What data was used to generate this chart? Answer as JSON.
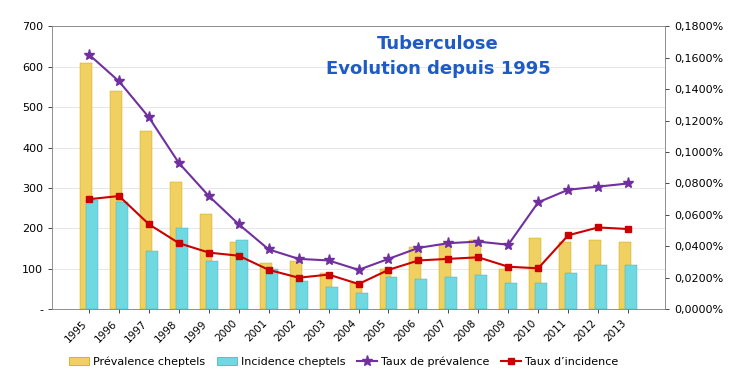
{
  "years": [
    1995,
    1996,
    1997,
    1998,
    1999,
    2000,
    2001,
    2002,
    2003,
    2004,
    2005,
    2006,
    2007,
    2008,
    2009,
    2010,
    2011,
    2012,
    2013
  ],
  "prevalence_cheptels": [
    610,
    540,
    440,
    315,
    235,
    165,
    115,
    120,
    90,
    65,
    100,
    155,
    160,
    170,
    100,
    175,
    165,
    170,
    165
  ],
  "incidence_cheptels": [
    270,
    265,
    145,
    200,
    120,
    170,
    100,
    70,
    55,
    40,
    80,
    75,
    80,
    85,
    65,
    65,
    90,
    110,
    110
  ],
  "taux_prevalence": [
    0.00162,
    0.00145,
    0.00122,
    0.00093,
    0.00072,
    0.00054,
    0.00038,
    0.00032,
    0.00031,
    0.00025,
    0.00032,
    0.00039,
    0.00042,
    0.00043,
    0.00041,
    0.00068,
    0.00076,
    0.00078,
    0.0008
  ],
  "taux_incidence": [
    0.0007,
    0.00072,
    0.00054,
    0.00042,
    0.00036,
    0.00034,
    0.00025,
    0.0002,
    0.00022,
    0.00016,
    0.00025,
    0.00031,
    0.00032,
    0.00033,
    0.00027,
    0.00026,
    0.00047,
    0.00052,
    0.00051
  ],
  "title_line1": "Tuberculose",
  "title_line2": "Evolution depuis 1995",
  "title_color": "#1f5bc4",
  "bar_color_prevalence": "#f0d060",
  "bar_color_incidence": "#70d8e0",
  "bar_edge_prevalence": "#c8a000",
  "bar_edge_incidence": "#40a8b8",
  "line_color_prevalence": "#7030a0",
  "line_color_incidence": "#cc0000",
  "ylim_left": [
    0,
    700
  ],
  "ylim_right": [
    0,
    0.0018
  ],
  "right_ytick_labels": [
    "0,0000%",
    "0,0200%",
    "0,0400%",
    "0,0600%",
    "0,0800%",
    "0,1000%",
    "0,1200%",
    "0,1400%",
    "0,1600%",
    "0,1800%"
  ],
  "right_ytick_vals": [
    0.0,
    0.0002,
    0.0004,
    0.0006,
    0.0008,
    0.001,
    0.0012,
    0.0014,
    0.0016,
    0.0018
  ],
  "left_ytick_labels": [
    "-",
    "100",
    "200",
    "300",
    "400",
    "500",
    "600",
    "700"
  ],
  "left_ytick_vals": [
    0,
    100,
    200,
    300,
    400,
    500,
    600,
    700
  ],
  "legend_labels": [
    "Prévalence cheptels",
    "Incidence cheptels",
    "Taux de prévalence",
    "Taux d’incidence"
  ],
  "background_color": "#ffffff"
}
